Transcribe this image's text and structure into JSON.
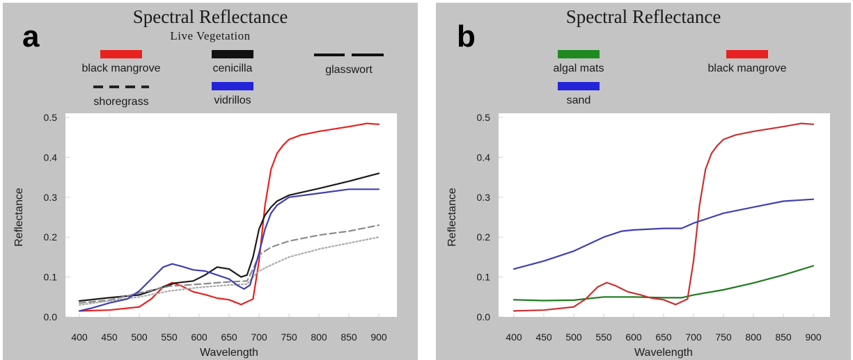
{
  "chart_data": [
    {
      "panel_letter": "a",
      "type": "line",
      "title": "Spectral Reflectance",
      "subtitle": "Live Vegetation",
      "xlabel": "Wavelength",
      "ylabel": "Reflectance",
      "xlim": [
        400,
        900
      ],
      "ylim": [
        0,
        0.5
      ],
      "xticks": [
        400,
        450,
        500,
        550,
        600,
        650,
        700,
        750,
        800,
        850,
        900
      ],
      "yticks": [
        0.0,
        0.1,
        0.2,
        0.3,
        0.4,
        0.5
      ],
      "ytick_labels": [
        "0.0",
        "0.1",
        "0.2",
        "0.3",
        "0.4",
        "0.5"
      ],
      "grid": false,
      "legend_position": "top",
      "series": [
        {
          "name": "black mangrove",
          "color": "#e8221f",
          "style": "solid",
          "x": [
            400,
            450,
            500,
            520,
            540,
            555,
            570,
            590,
            610,
            630,
            650,
            670,
            690,
            700,
            710,
            720,
            730,
            740,
            750,
            770,
            800,
            850,
            880,
            900
          ],
          "y": [
            0.015,
            0.017,
            0.025,
            0.045,
            0.075,
            0.086,
            0.078,
            0.063,
            0.056,
            0.047,
            0.043,
            0.031,
            0.045,
            0.14,
            0.28,
            0.37,
            0.41,
            0.43,
            0.445,
            0.456,
            0.465,
            0.477,
            0.485,
            0.483
          ]
        },
        {
          "name": "cenicilla",
          "color": "#1a1a1a",
          "style": "solid",
          "x": [
            400,
            450,
            500,
            530,
            560,
            590,
            610,
            630,
            650,
            670,
            680,
            690,
            700,
            710,
            720,
            730,
            750,
            800,
            850,
            900
          ],
          "y": [
            0.04,
            0.048,
            0.055,
            0.07,
            0.085,
            0.09,
            0.105,
            0.125,
            0.12,
            0.1,
            0.105,
            0.15,
            0.22,
            0.255,
            0.275,
            0.29,
            0.305,
            0.322,
            0.34,
            0.36
          ]
        },
        {
          "name": "glasswort",
          "color": "#8a8a8a",
          "style": "dashed",
          "x": [
            400,
            450,
            500,
            550,
            600,
            650,
            680,
            690,
            700,
            720,
            750,
            800,
            850,
            900
          ],
          "y": [
            0.035,
            0.042,
            0.06,
            0.077,
            0.082,
            0.088,
            0.09,
            0.12,
            0.155,
            0.175,
            0.19,
            0.205,
            0.215,
            0.23
          ]
        },
        {
          "name": "shoregrass",
          "color": "#a8a8a8",
          "style": "dotted",
          "x": [
            400,
            450,
            500,
            550,
            600,
            650,
            680,
            690,
            700,
            720,
            750,
            800,
            850,
            900
          ],
          "y": [
            0.03,
            0.04,
            0.05,
            0.065,
            0.074,
            0.08,
            0.082,
            0.1,
            0.115,
            0.13,
            0.15,
            0.17,
            0.185,
            0.2
          ]
        },
        {
          "name": "vidrillos",
          "color": "#3f3fb0",
          "style": "solid",
          "x": [
            400,
            420,
            450,
            480,
            500,
            520,
            540,
            555,
            570,
            590,
            610,
            630,
            650,
            665,
            675,
            685,
            700,
            710,
            720,
            730,
            750,
            800,
            850,
            900
          ],
          "y": [
            0.015,
            0.022,
            0.035,
            0.045,
            0.065,
            0.095,
            0.125,
            0.133,
            0.127,
            0.118,
            0.115,
            0.105,
            0.095,
            0.078,
            0.07,
            0.08,
            0.16,
            0.22,
            0.26,
            0.28,
            0.3,
            0.31,
            0.32,
            0.32
          ]
        }
      ],
      "legend_layout": [
        {
          "label": "black mangrove",
          "swatch": "block",
          "color": "#e8221f"
        },
        {
          "label": "cenicilla",
          "swatch": "block",
          "color": "#111111"
        },
        {
          "label": "glasswort",
          "swatch": "longdash",
          "color": "#111111"
        },
        {
          "label": "shoregrass",
          "swatch": "dash",
          "color": "#222222"
        },
        {
          "label": "vidrillos",
          "swatch": "block",
          "color": "#2323d8"
        }
      ]
    },
    {
      "panel_letter": "b",
      "type": "line",
      "title": "Spectral Reflectance",
      "xlabel": "Wavelength",
      "ylabel": "Reflectance",
      "xlim": [
        400,
        900
      ],
      "ylim": [
        0,
        0.5
      ],
      "xticks": [
        400,
        450,
        500,
        550,
        600,
        650,
        700,
        750,
        800,
        850,
        900
      ],
      "yticks": [
        0.0,
        0.1,
        0.2,
        0.3,
        0.4,
        0.5
      ],
      "ytick_labels": [
        "0.0",
        "0.1",
        "0.2",
        "0.3",
        "0.4",
        "0.5"
      ],
      "grid": false,
      "legend_position": "top",
      "series": [
        {
          "name": "algal mats",
          "color": "#1f7a1f",
          "style": "solid",
          "x": [
            400,
            450,
            500,
            550,
            600,
            650,
            680,
            700,
            750,
            800,
            850,
            900
          ],
          "y": [
            0.043,
            0.041,
            0.042,
            0.05,
            0.05,
            0.048,
            0.048,
            0.055,
            0.068,
            0.085,
            0.105,
            0.128
          ]
        },
        {
          "name": "black mangrove",
          "color": "#c83232",
          "style": "solid",
          "x": [
            400,
            450,
            500,
            520,
            540,
            555,
            570,
            590,
            610,
            630,
            650,
            670,
            690,
            700,
            710,
            720,
            730,
            740,
            750,
            770,
            800,
            850,
            880,
            900
          ],
          "y": [
            0.015,
            0.017,
            0.025,
            0.045,
            0.075,
            0.086,
            0.078,
            0.063,
            0.056,
            0.047,
            0.043,
            0.031,
            0.045,
            0.14,
            0.28,
            0.37,
            0.41,
            0.43,
            0.445,
            0.456,
            0.465,
            0.477,
            0.485,
            0.483
          ]
        },
        {
          "name": "sand",
          "color": "#4040b0",
          "style": "solid",
          "x": [
            400,
            450,
            500,
            550,
            580,
            600,
            650,
            680,
            700,
            730,
            750,
            800,
            850,
            900
          ],
          "y": [
            0.12,
            0.14,
            0.165,
            0.2,
            0.215,
            0.218,
            0.222,
            0.222,
            0.235,
            0.25,
            0.26,
            0.275,
            0.29,
            0.295
          ]
        }
      ],
      "legend_layout": [
        {
          "label": "algal mats",
          "swatch": "block",
          "color": "#1f8a1f"
        },
        {
          "label": "black mangrove",
          "swatch": "block",
          "color": "#e82222"
        },
        {
          "label": "sand",
          "swatch": "block",
          "color": "#2323d8"
        }
      ]
    }
  ]
}
